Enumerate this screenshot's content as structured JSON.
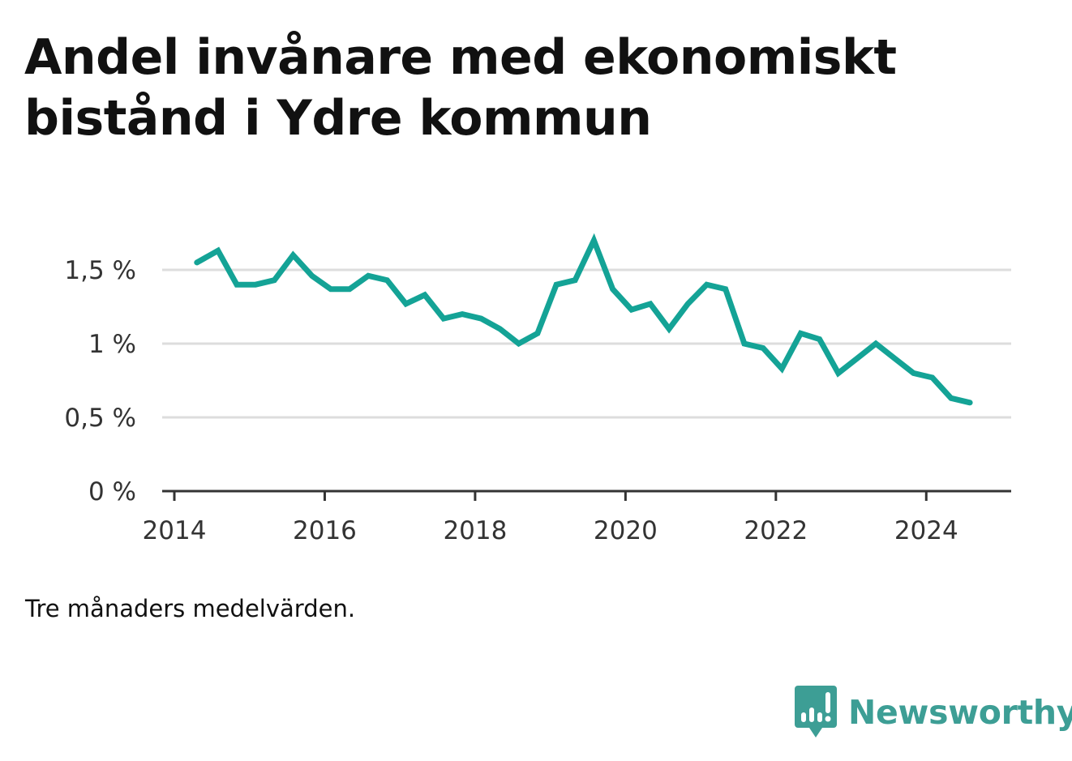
{
  "title": "Andel invånare med ekonomiskt bistånd i Ydre kommun",
  "footnote": "Tre månaders medelvärden.",
  "brand": {
    "name": "Newsworthy",
    "color": "#3d9e95"
  },
  "chart_data": {
    "type": "line",
    "line_color": "#14a396",
    "grid": true,
    "x_axis": {
      "domain": [
        2014.0,
        2025.0
      ],
      "ticks": [
        2014,
        2016,
        2018,
        2020,
        2022,
        2024
      ],
      "tick_labels": [
        "2014",
        "2016",
        "2018",
        "2020",
        "2022",
        "2024"
      ]
    },
    "y_axis": {
      "domain": [
        0,
        1.8
      ],
      "ticks": [
        0,
        0.5,
        1,
        1.5
      ],
      "tick_labels": [
        "0 %",
        "0,5 %",
        "1 %",
        "1,5 %"
      ]
    },
    "series": [
      {
        "x": [
          2014.3,
          2014.58,
          2014.83,
          2015.08,
          2015.33,
          2015.58,
          2015.83,
          2016.08,
          2016.33,
          2016.58,
          2016.83,
          2017.08,
          2017.33,
          2017.58,
          2017.83,
          2018.08,
          2018.33,
          2018.58,
          2018.83,
          2019.08,
          2019.33,
          2019.58,
          2019.83,
          2020.08,
          2020.33,
          2020.58,
          2020.83,
          2021.08,
          2021.33,
          2021.58,
          2021.83,
          2022.08,
          2022.33,
          2022.58,
          2022.83,
          2023.08,
          2023.33,
          2023.58,
          2023.83,
          2024.08,
          2024.33,
          2024.58
        ],
        "y": [
          1.55,
          1.63,
          1.4,
          1.4,
          1.43,
          1.6,
          1.46,
          1.37,
          1.37,
          1.46,
          1.43,
          1.27,
          1.33,
          1.17,
          1.2,
          1.17,
          1.1,
          1.0,
          1.07,
          1.4,
          1.43,
          1.7,
          1.37,
          1.23,
          1.27,
          1.1,
          1.27,
          1.4,
          1.37,
          1.0,
          0.97,
          0.83,
          1.07,
          1.03,
          0.8,
          0.9,
          1.0,
          0.9,
          0.8,
          0.77,
          0.63,
          0.6
        ]
      }
    ]
  }
}
